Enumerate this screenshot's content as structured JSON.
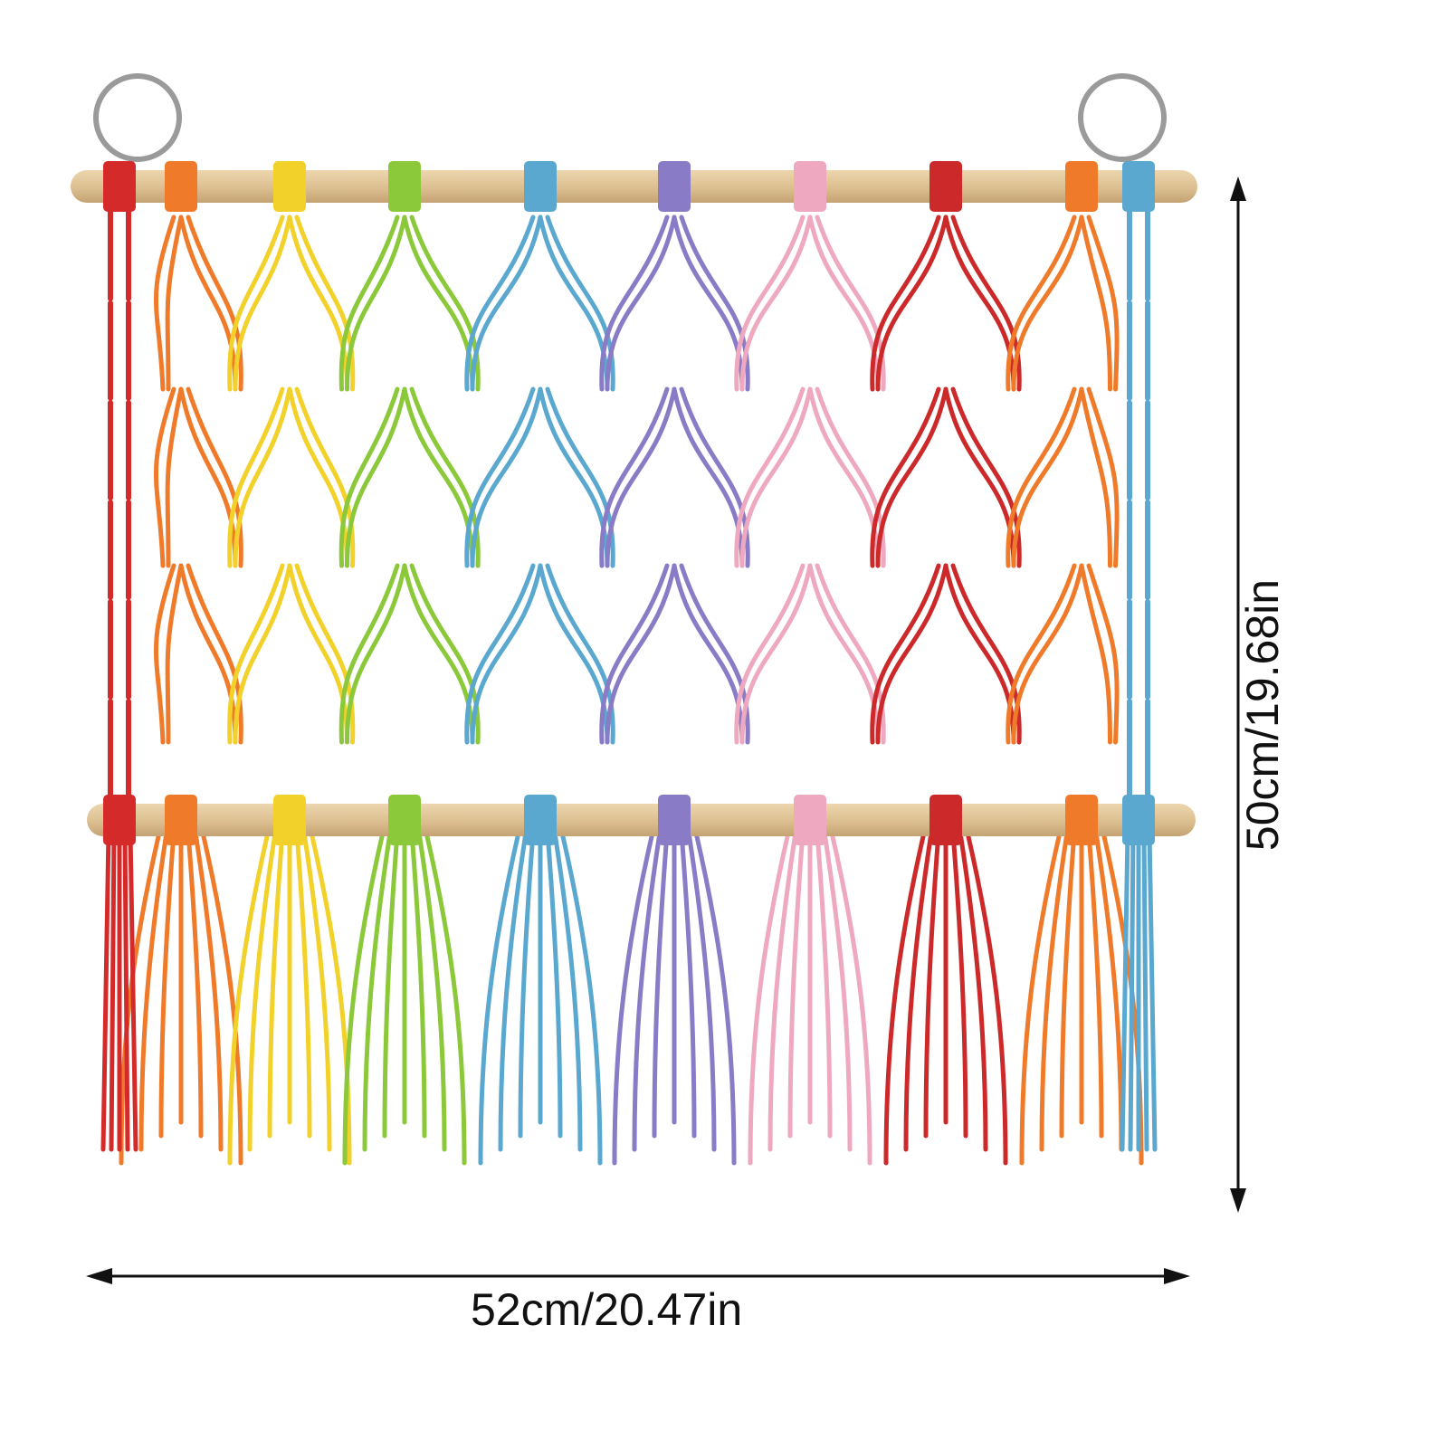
{
  "product": {
    "width_label": "52cm/20.47in",
    "height_label": "50cm/19.68in"
  },
  "colors": {
    "background": "#ffffff",
    "dowel": "#e2c89c",
    "dowel_shade": "#c9a878",
    "ring": "#9a9a9a",
    "arrow": "#111111",
    "cords": [
      "#d42a2a",
      "#ef7b2a",
      "#f2d12a",
      "#8bc83a",
      "#5aa8cf",
      "#8a7bc6",
      "#eea8bf",
      "#cc2a2a",
      "#ef7b2a",
      "#5aa8cf"
    ]
  },
  "icons": {
    "left_ring": "key-ring-icon",
    "right_ring": "key-ring-icon",
    "width_arrow": "double-arrow-horizontal-icon",
    "height_arrow": "double-arrow-vertical-icon"
  }
}
